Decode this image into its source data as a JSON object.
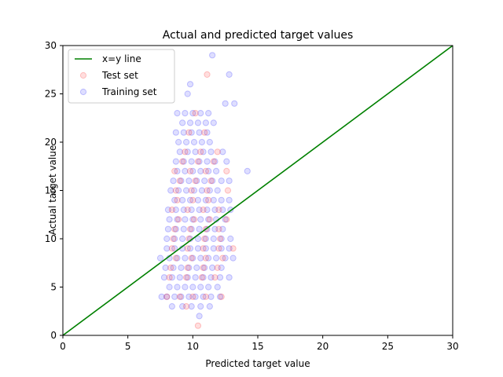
{
  "chart_data": {
    "type": "scatter",
    "title": "Actual and predicted target values",
    "xlabel": "Predicted target value",
    "ylabel": "Actual target value",
    "xlim": [
      0,
      30
    ],
    "ylim": [
      0,
      30
    ],
    "xticks": [
      0,
      5,
      10,
      15,
      20,
      25,
      30
    ],
    "yticks": [
      0,
      5,
      10,
      15,
      20,
      25,
      30
    ],
    "grid": false,
    "legend_position": "top-left",
    "legend": [
      {
        "label": "x=y line",
        "type": "line",
        "color": "#008000"
      },
      {
        "label": "Test set",
        "type": "marker",
        "color": "#ff0000"
      },
      {
        "label": "Training set",
        "type": "marker",
        "color": "#0000ff"
      }
    ],
    "reference_line": {
      "name": "x=y line",
      "points": [
        [
          0,
          0
        ],
        [
          30,
          30
        ]
      ],
      "color": "#008000"
    },
    "series": [
      {
        "name": "Training set",
        "color": "#0000ff",
        "points": [
          [
            7.6,
            4
          ],
          [
            8.0,
            4
          ],
          [
            8.6,
            4
          ],
          [
            9.1,
            4
          ],
          [
            9.7,
            4
          ],
          [
            10.2,
            4
          ],
          [
            10.8,
            4
          ],
          [
            11.4,
            4
          ],
          [
            12.1,
            4
          ],
          [
            8.4,
            3
          ],
          [
            9.2,
            3
          ],
          [
            9.9,
            3
          ],
          [
            10.6,
            3
          ],
          [
            11.3,
            3
          ],
          [
            8.2,
            5
          ],
          [
            8.8,
            5
          ],
          [
            9.4,
            5
          ],
          [
            10.0,
            5
          ],
          [
            10.6,
            5
          ],
          [
            11.2,
            5
          ],
          [
            11.9,
            5
          ],
          [
            7.8,
            6
          ],
          [
            8.4,
            6
          ],
          [
            9.0,
            6
          ],
          [
            9.6,
            6
          ],
          [
            10.2,
            6
          ],
          [
            10.8,
            6
          ],
          [
            11.4,
            6
          ],
          [
            12.1,
            6
          ],
          [
            12.8,
            6
          ],
          [
            7.9,
            7
          ],
          [
            8.5,
            7
          ],
          [
            9.1,
            7
          ],
          [
            9.7,
            7
          ],
          [
            10.3,
            7
          ],
          [
            10.9,
            7
          ],
          [
            11.5,
            7
          ],
          [
            12.2,
            7
          ],
          [
            7.5,
            8
          ],
          [
            8.2,
            8
          ],
          [
            8.8,
            8
          ],
          [
            9.4,
            8
          ],
          [
            10.0,
            8
          ],
          [
            10.6,
            8
          ],
          [
            11.2,
            8
          ],
          [
            11.8,
            8
          ],
          [
            12.5,
            8
          ],
          [
            13.1,
            8
          ],
          [
            8.0,
            9
          ],
          [
            8.6,
            9
          ],
          [
            9.2,
            9
          ],
          [
            9.8,
            9
          ],
          [
            10.4,
            9
          ],
          [
            11.0,
            9
          ],
          [
            11.6,
            9
          ],
          [
            12.2,
            9
          ],
          [
            12.8,
            9
          ],
          [
            8.0,
            10
          ],
          [
            8.6,
            10
          ],
          [
            9.2,
            10
          ],
          [
            9.8,
            10
          ],
          [
            10.4,
            10
          ],
          [
            11.0,
            10
          ],
          [
            11.6,
            10
          ],
          [
            12.2,
            10
          ],
          [
            12.9,
            10
          ],
          [
            8.1,
            11
          ],
          [
            8.7,
            11
          ],
          [
            9.3,
            11
          ],
          [
            9.9,
            11
          ],
          [
            10.5,
            11
          ],
          [
            11.1,
            11
          ],
          [
            11.7,
            11
          ],
          [
            12.3,
            11
          ],
          [
            8.2,
            12
          ],
          [
            8.8,
            12
          ],
          [
            9.4,
            12
          ],
          [
            10.0,
            12
          ],
          [
            10.6,
            12
          ],
          [
            11.2,
            12
          ],
          [
            11.8,
            12
          ],
          [
            12.5,
            12
          ],
          [
            8.1,
            13
          ],
          [
            8.7,
            13
          ],
          [
            9.3,
            13
          ],
          [
            9.9,
            13
          ],
          [
            10.5,
            13
          ],
          [
            11.1,
            13
          ],
          [
            11.7,
            13
          ],
          [
            12.3,
            13
          ],
          [
            12.9,
            13
          ],
          [
            8.6,
            14
          ],
          [
            9.2,
            14
          ],
          [
            9.8,
            14
          ],
          [
            10.4,
            14
          ],
          [
            11.0,
            14
          ],
          [
            11.6,
            14
          ],
          [
            12.2,
            14
          ],
          [
            12.8,
            14
          ],
          [
            8.3,
            15
          ],
          [
            8.9,
            15
          ],
          [
            9.5,
            15
          ],
          [
            10.1,
            15
          ],
          [
            10.7,
            15
          ],
          [
            11.3,
            15
          ],
          [
            11.9,
            15
          ],
          [
            8.5,
            16
          ],
          [
            9.1,
            16
          ],
          [
            9.7,
            16
          ],
          [
            10.3,
            16
          ],
          [
            10.9,
            16
          ],
          [
            11.5,
            16
          ],
          [
            12.2,
            16
          ],
          [
            12.8,
            16
          ],
          [
            8.8,
            17
          ],
          [
            9.4,
            17
          ],
          [
            10.0,
            17
          ],
          [
            10.6,
            17
          ],
          [
            11.2,
            17
          ],
          [
            11.8,
            17
          ],
          [
            14.2,
            17
          ],
          [
            8.7,
            18
          ],
          [
            9.3,
            18
          ],
          [
            9.9,
            18
          ],
          [
            10.5,
            18
          ],
          [
            11.1,
            18
          ],
          [
            11.7,
            18
          ],
          [
            12.6,
            18
          ],
          [
            9.0,
            19
          ],
          [
            9.6,
            19
          ],
          [
            10.2,
            19
          ],
          [
            10.8,
            19
          ],
          [
            11.4,
            19
          ],
          [
            12.3,
            19
          ],
          [
            8.9,
            20
          ],
          [
            9.5,
            20
          ],
          [
            10.1,
            20
          ],
          [
            10.7,
            20
          ],
          [
            11.3,
            20
          ],
          [
            8.7,
            21
          ],
          [
            9.3,
            21
          ],
          [
            9.9,
            21
          ],
          [
            10.5,
            21
          ],
          [
            11.1,
            21
          ],
          [
            9.2,
            22
          ],
          [
            9.8,
            22
          ],
          [
            10.4,
            22
          ],
          [
            11.0,
            22
          ],
          [
            11.6,
            22
          ],
          [
            8.8,
            23
          ],
          [
            9.4,
            23
          ],
          [
            10.0,
            23
          ],
          [
            10.6,
            23
          ],
          [
            11.2,
            23
          ],
          [
            12.5,
            24
          ],
          [
            13.2,
            24
          ],
          [
            9.6,
            25
          ],
          [
            9.8,
            26
          ],
          [
            12.8,
            27
          ],
          [
            11.5,
            29
          ],
          [
            10.5,
            2
          ]
        ]
      },
      {
        "name": "Test set",
        "color": "#ff0000",
        "points": [
          [
            8.0,
            4
          ],
          [
            9.0,
            4
          ],
          [
            10.0,
            4
          ],
          [
            11.0,
            4
          ],
          [
            12.2,
            4
          ],
          [
            8.2,
            6
          ],
          [
            9.5,
            6
          ],
          [
            10.7,
            6
          ],
          [
            11.7,
            6
          ],
          [
            8.3,
            7
          ],
          [
            9.6,
            7
          ],
          [
            10.8,
            7
          ],
          [
            11.9,
            7
          ],
          [
            8.7,
            8
          ],
          [
            9.9,
            8
          ],
          [
            11.0,
            8
          ],
          [
            12.3,
            8
          ],
          [
            8.4,
            9
          ],
          [
            9.6,
            9
          ],
          [
            10.8,
            9
          ],
          [
            12.0,
            9
          ],
          [
            13.1,
            9
          ],
          [
            8.5,
            10
          ],
          [
            9.7,
            10
          ],
          [
            10.9,
            10
          ],
          [
            12.1,
            10
          ],
          [
            8.6,
            11
          ],
          [
            9.8,
            11
          ],
          [
            11.0,
            11
          ],
          [
            12.0,
            11
          ],
          [
            8.9,
            12
          ],
          [
            10.1,
            12
          ],
          [
            11.3,
            12
          ],
          [
            12.6,
            12
          ],
          [
            8.4,
            13
          ],
          [
            9.6,
            13
          ],
          [
            10.8,
            13
          ],
          [
            12.0,
            13
          ],
          [
            8.8,
            14
          ],
          [
            10.0,
            14
          ],
          [
            11.2,
            14
          ],
          [
            8.7,
            15
          ],
          [
            9.9,
            15
          ],
          [
            11.1,
            15
          ],
          [
            12.7,
            15
          ],
          [
            9.0,
            16
          ],
          [
            10.2,
            16
          ],
          [
            11.4,
            16
          ],
          [
            8.6,
            17
          ],
          [
            9.8,
            17
          ],
          [
            11.0,
            17
          ],
          [
            12.6,
            17
          ],
          [
            9.2,
            18
          ],
          [
            10.4,
            18
          ],
          [
            11.6,
            18
          ],
          [
            9.4,
            19
          ],
          [
            10.6,
            19
          ],
          [
            11.9,
            19
          ],
          [
            9.7,
            21
          ],
          [
            10.9,
            21
          ],
          [
            10.2,
            23
          ],
          [
            10.4,
            1
          ],
          [
            9.5,
            3
          ],
          [
            11.1,
            27
          ]
        ]
      }
    ]
  }
}
